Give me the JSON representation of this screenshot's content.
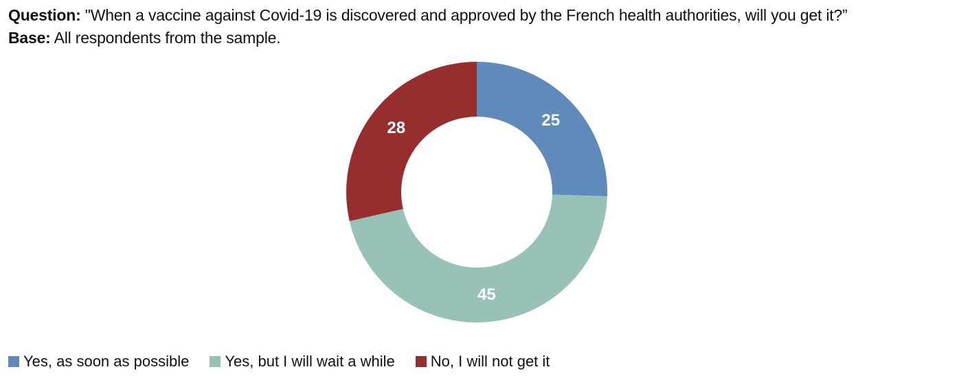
{
  "header": {
    "question_label": "Question:",
    "question_text": "\"When a vaccine against Covid-19 is discovered and approved by the French health authorities, will you get it?”",
    "base_label": "Base:",
    "base_text": "All respondents from the sample."
  },
  "chart_data": {
    "type": "pie",
    "donut": true,
    "categories": [
      "Yes, as soon as possible",
      "Yes, but I will wait a while",
      "No, I will not get it"
    ],
    "values": [
      25,
      45,
      28
    ],
    "colors": [
      "#5f8ab9",
      "#98c2b8",
      "#962d2e"
    ],
    "data_labels": [
      "25",
      "45",
      "28"
    ],
    "legend_position": "bottom-left"
  }
}
